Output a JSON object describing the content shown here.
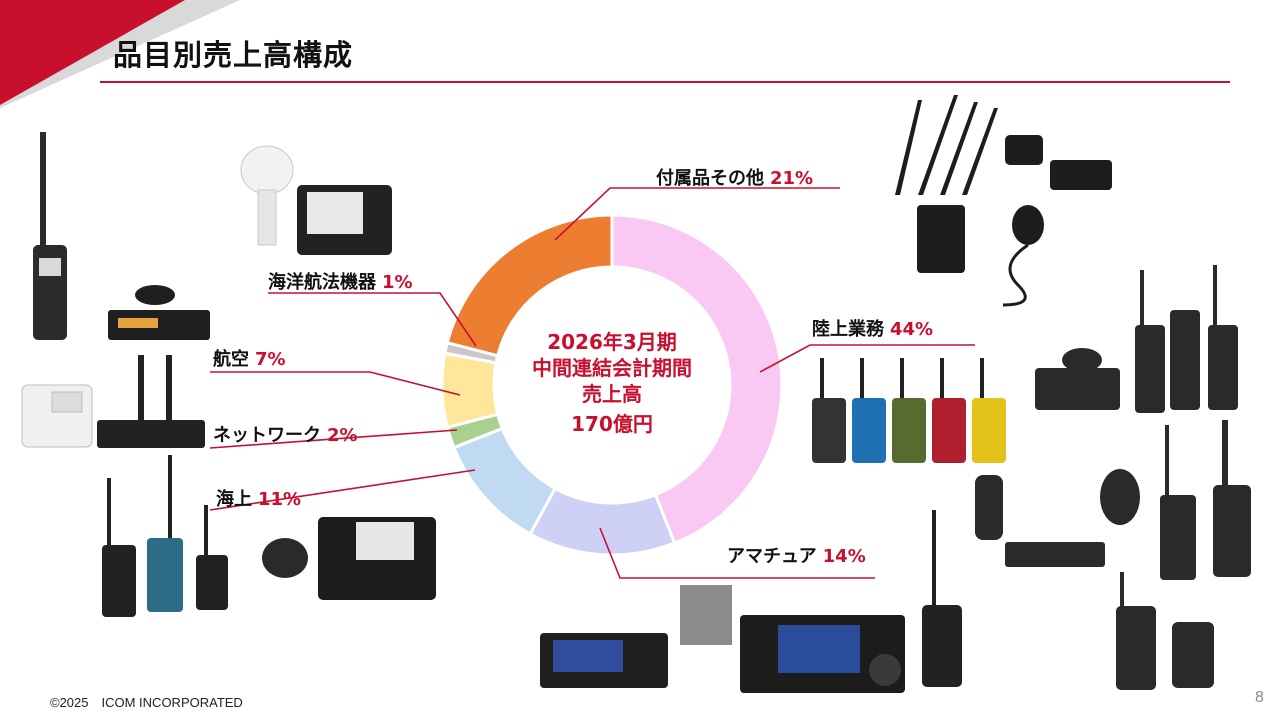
{
  "slide": {
    "title": "品目別売上高構成",
    "footer": "©2025　ICOM INCORPORATED",
    "page_number": "8",
    "accent_color": "#c8102e"
  },
  "chart_data": {
    "type": "pie",
    "style": "donut",
    "center_label": [
      "2026年3月期",
      "中間連結会計期間",
      "売上高",
      "170億円"
    ],
    "slices": [
      {
        "label": "陸上業務",
        "value": 44,
        "display": "44%",
        "color": "#f9c8f3"
      },
      {
        "label": "アマチュア",
        "value": 14,
        "display": "14%",
        "color": "#cfd0f5"
      },
      {
        "label": "海上",
        "value": 11,
        "display": "11%",
        "color": "#c0dbf1"
      },
      {
        "label": "ネットワーク",
        "value": 2,
        "display": "2%",
        "color": "#a9d18e"
      },
      {
        "label": "航空",
        "value": 7,
        "display": "7%",
        "color": "#ffe699"
      },
      {
        "label": "海洋航法機器",
        "value": 1,
        "display": "1%",
        "color": "#c8c8c8"
      },
      {
        "label": "付属品その他",
        "value": 21,
        "display": "21%",
        "color": "#ed7d31"
      }
    ]
  }
}
